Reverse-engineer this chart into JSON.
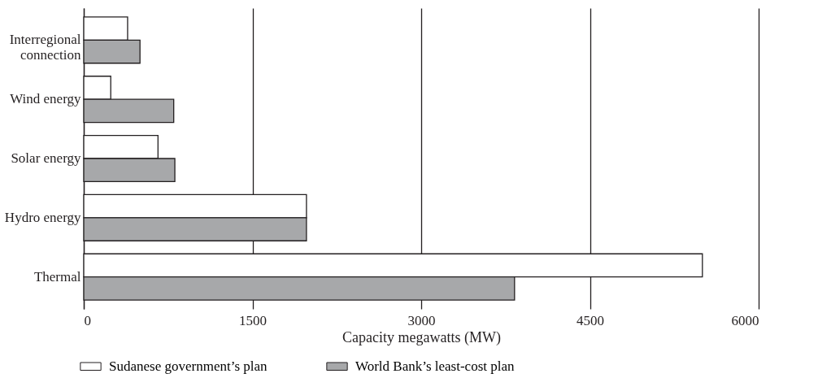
{
  "chart_data": {
    "type": "bar",
    "orientation": "horizontal",
    "categories": [
      "Interregional\nconnection",
      "Wind energy",
      "Solar energy",
      "Hydro energy",
      "Thermal"
    ],
    "series": [
      {
        "name": "Sudanese government’s plan",
        "color": "#ffffff",
        "values": [
          390,
          240,
          660,
          1980,
          5500
        ]
      },
      {
        "name": "World Bank’s least-cost plan",
        "color": "#a7a8aa",
        "values": [
          500,
          800,
          810,
          1980,
          3830
        ]
      }
    ],
    "xlabel": "Capacity megawatts (MW)",
    "xlim": [
      0,
      6000
    ],
    "xticks": [
      0,
      1500,
      3000,
      4500,
      6000
    ],
    "grid": "x",
    "legend": "bottom"
  }
}
